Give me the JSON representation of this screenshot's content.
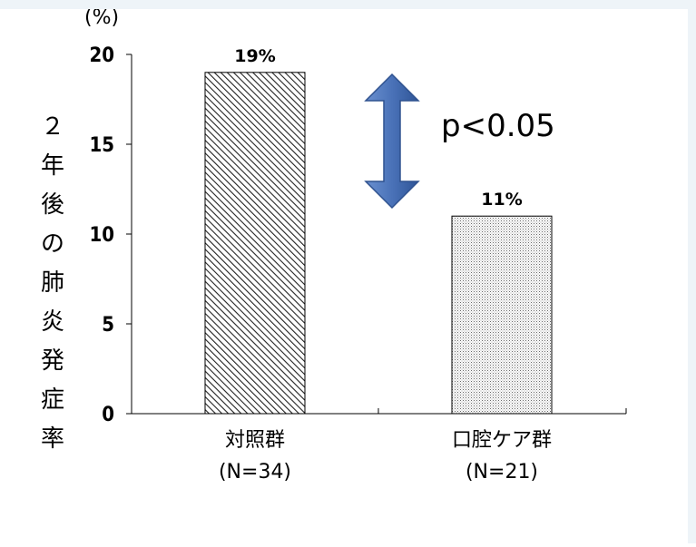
{
  "chart_data": {
    "type": "bar",
    "title": "",
    "unit_label": "(%)",
    "ylabel": "２年後の肺炎発症率",
    "ylim": [
      0,
      20
    ],
    "yticks": [
      "0",
      "5",
      "10",
      "15",
      "20"
    ],
    "categories": [
      {
        "line1": "対照群",
        "line2": "(N=34)"
      },
      {
        "line1": "口腔ケア群",
        "line2": "(N=21)"
      }
    ],
    "values": [
      19,
      11
    ],
    "data_labels": [
      "19%",
      "11%"
    ],
    "bar_patterns": [
      "diagonal-hatch",
      "dots"
    ],
    "annotation": "p<0.05",
    "arrow_color": "#4a72b8",
    "grid": false
  }
}
